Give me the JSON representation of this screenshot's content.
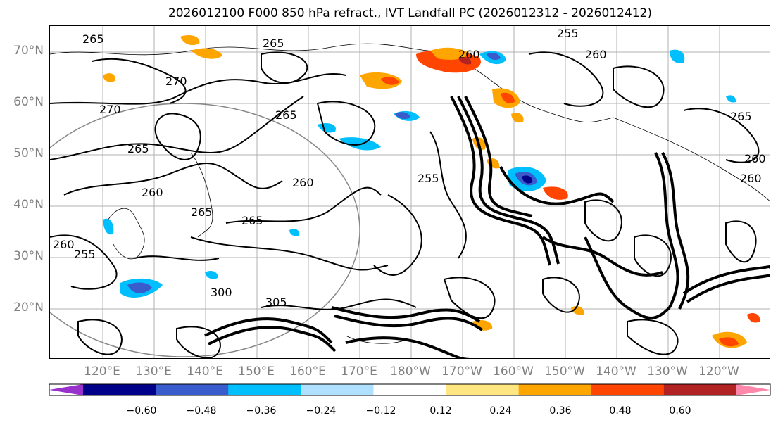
{
  "title": "2026012100 F000 850 hPa refract., IVT Landfall PC (2026012312 - 2026012412)",
  "latitude_labels": [
    "70°N",
    "60°N",
    "50°N",
    "40°N",
    "30°N",
    "20°N"
  ],
  "longitude_labels": [
    "120°E",
    "130°E",
    "140°E",
    "150°E",
    "160°E",
    "170°E",
    "180°W",
    "170°W",
    "160°W",
    "150°W",
    "140°W",
    "130°W",
    "120°W"
  ],
  "contour_labels": [
    "265",
    "265",
    "270",
    "270",
    "265",
    "265",
    "260",
    "265",
    "260",
    "255",
    "260",
    "265",
    "260",
    "300",
    "305",
    "260",
    "255",
    "260",
    "260",
    "265",
    "255"
  ],
  "colorbar": {
    "ticks": [
      "−0.60",
      "−0.48",
      "−0.36",
      "−0.24",
      "−0.12",
      "0.12",
      "0.24",
      "0.36",
      "0.48",
      "0.60"
    ],
    "colors": [
      "#9932CC",
      "#00008B",
      "#3A5BCC",
      "#00BFFF",
      "#B0E0FF",
      "#FFFFFF",
      "#FFE680",
      "#FFA500",
      "#FF4500",
      "#B22222",
      "#FF88AA"
    ]
  }
}
